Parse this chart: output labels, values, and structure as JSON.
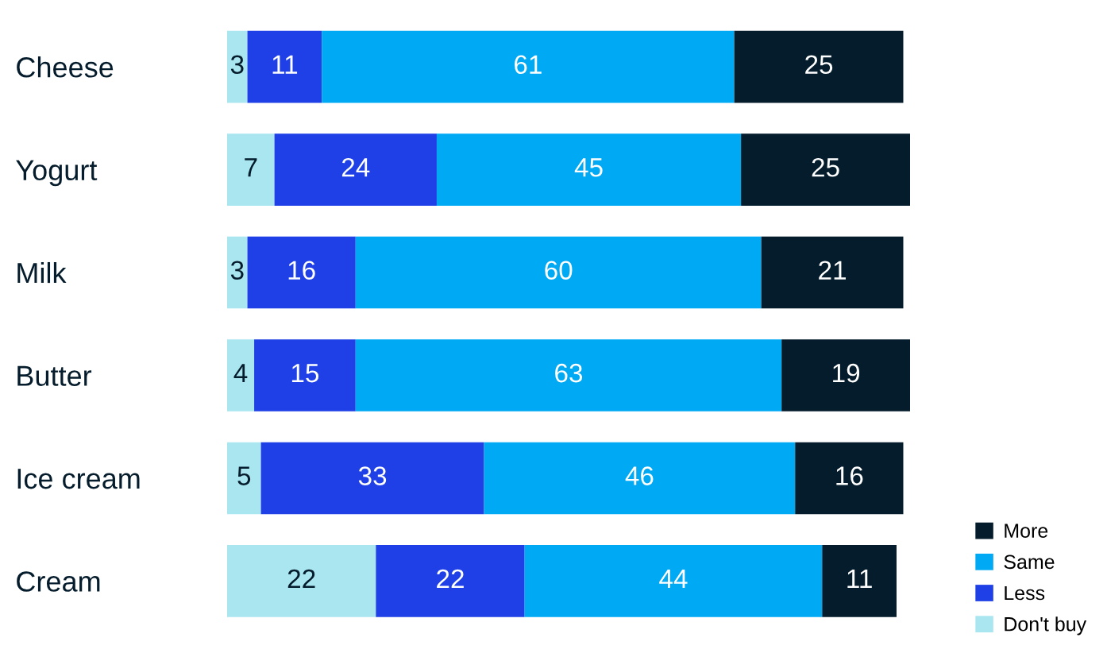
{
  "chart_data": {
    "type": "bar",
    "orientation": "horizontal",
    "stacked": true,
    "data_labels": true,
    "legend": "bottom right",
    "grid": false,
    "categories": [
      "Cheese",
      "Yogurt",
      "Milk",
      "Butter",
      "Ice cream",
      "Cream"
    ],
    "series": [
      {
        "name": "Don't buy",
        "color": "#aae6f0",
        "values": [
          3,
          7,
          3,
          4,
          5,
          22
        ]
      },
      {
        "name": "Less",
        "color": "#1f40e6",
        "values": [
          11,
          24,
          16,
          15,
          33,
          22
        ]
      },
      {
        "name": "Same",
        "color": "#00a9f4",
        "values": [
          61,
          45,
          60,
          63,
          46,
          44
        ]
      },
      {
        "name": "More",
        "color": "#051c2c",
        "values": [
          25,
          25,
          21,
          19,
          16,
          11
        ]
      }
    ]
  }
}
